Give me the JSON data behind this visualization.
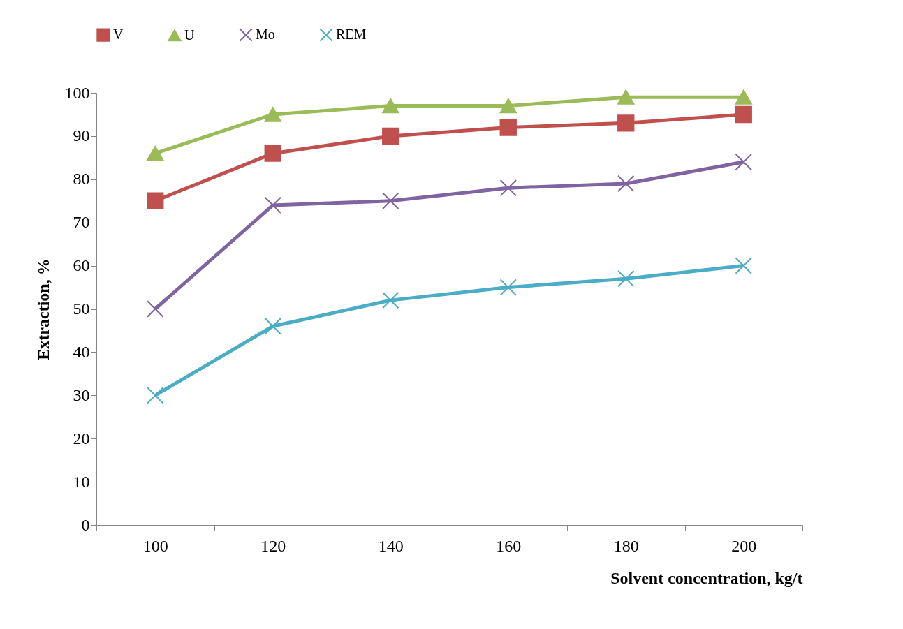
{
  "chart_data": {
    "type": "line",
    "xlabel": "Solvent concentration, kg/t",
    "ylabel": "Extraction, %",
    "categories": [
      "100",
      "120",
      "140",
      "160",
      "180",
      "200"
    ],
    "ylim": [
      0,
      100
    ],
    "yticks": [
      0,
      10,
      20,
      30,
      40,
      50,
      60,
      70,
      80,
      90,
      100
    ],
    "grid": false,
    "legend": "top",
    "series": [
      {
        "name": "V",
        "color": "#c0504d",
        "marker": "square",
        "values": [
          75,
          86,
          90,
          92,
          93,
          95
        ]
      },
      {
        "name": "U",
        "color": "#9bbb59",
        "marker": "triangle",
        "values": [
          86,
          95,
          97,
          97,
          99,
          99
        ]
      },
      {
        "name": "Mo",
        "color": "#8064a2",
        "marker": "cross",
        "values": [
          50,
          74,
          75,
          78,
          79,
          84
        ]
      },
      {
        "name": "REM",
        "color": "#4bacc6",
        "marker": "cross",
        "values": [
          30,
          46,
          52,
          55,
          57,
          60
        ]
      }
    ]
  }
}
